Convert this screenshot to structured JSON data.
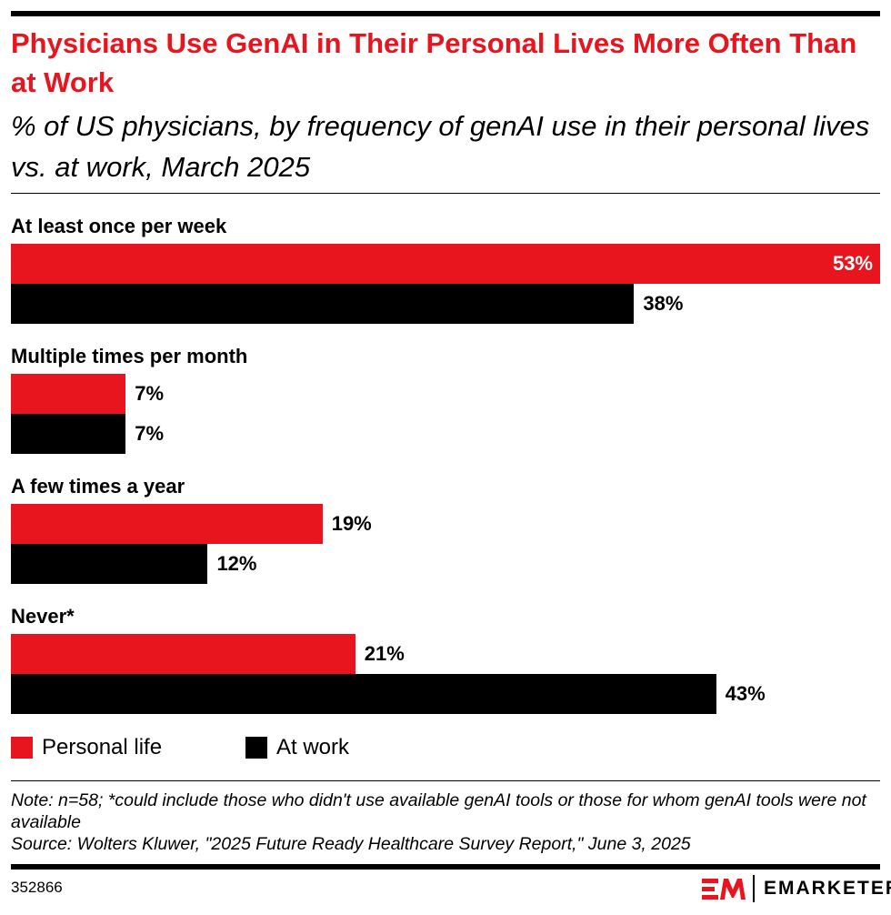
{
  "title": "Physicians Use GenAI in Their Personal Lives More Often Than at Work",
  "subtitle": "% of US physicians, by frequency of genAI use in their personal lives vs. at work, March 2025",
  "chart_data": {
    "type": "bar",
    "orientation": "horizontal",
    "categories": [
      "At least once per week",
      "Multiple times per month",
      "A few times a year",
      "Never*"
    ],
    "series": [
      {
        "name": "Personal life",
        "color": "#e8141e",
        "values": [
          53,
          7,
          19,
          21
        ]
      },
      {
        "name": "At work",
        "color": "#000000",
        "values": [
          38,
          7,
          12,
          43
        ]
      }
    ],
    "value_labels": [
      [
        "53%",
        "38%"
      ],
      [
        "7%",
        "7%"
      ],
      [
        "19%",
        "12%"
      ],
      [
        "21%",
        "43%"
      ]
    ],
    "xlim": [
      0,
      53
    ],
    "grid": false,
    "legend_placement": "bottom-left"
  },
  "notes": {
    "note": "Note: n=58; *could include those who didn't use available genAI tools or those for whom genAI tools were not available",
    "source": "Source: Wolters Kluwer, \"2025 Future Ready Healthcare Survey Report,\" June 3, 2025"
  },
  "chart_id": "352866",
  "brand": {
    "logo_text": "EMARKETER",
    "accent": "#e8141e"
  }
}
